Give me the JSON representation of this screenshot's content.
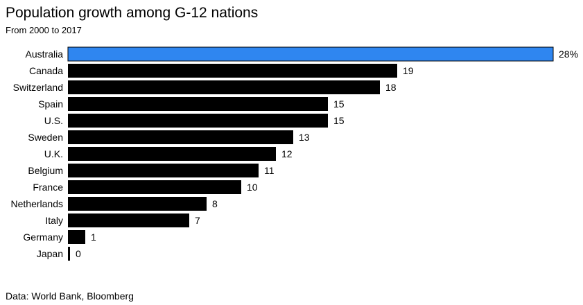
{
  "title": "Population growth among G-12 nations",
  "subtitle": "From 2000 to 2017",
  "source": "Data: World Bank, Bloomberg",
  "colors": {
    "highlight": "#2f86f0",
    "bar": "#000000"
  },
  "chart_data": {
    "type": "bar",
    "orientation": "horizontal",
    "categories": [
      "Australia",
      "Canada",
      "Switzerland",
      "Spain",
      "U.S.",
      "Sweden",
      "U.K.",
      "Belgium",
      "France",
      "Netherlands",
      "Italy",
      "Germany",
      "Japan"
    ],
    "values": [
      28,
      19,
      18,
      15,
      15,
      13,
      12,
      11,
      10,
      8,
      7,
      1,
      0
    ],
    "value_labels": [
      "28%",
      "19",
      "18",
      "15",
      "15",
      "13",
      "12",
      "11",
      "10",
      "8",
      "7",
      "1",
      "0"
    ],
    "highlight_category": "Australia",
    "title": "Population growth among G-12 nations",
    "xlabel": "",
    "ylabel": "",
    "xlim": [
      0,
      28
    ],
    "grid": false,
    "legend": "none"
  }
}
